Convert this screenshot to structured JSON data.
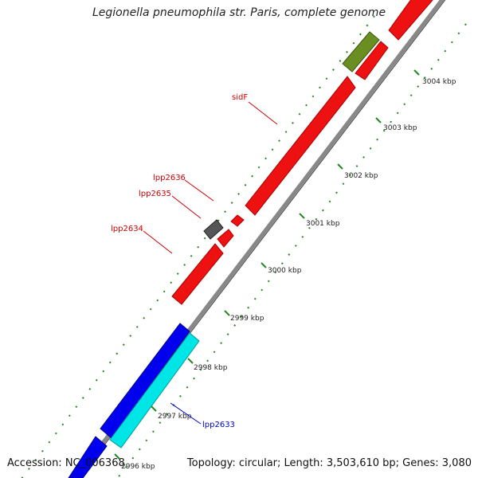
{
  "title": "Legionella pneumophila str. Paris, complete genome",
  "footer": {
    "accession": "Accession: NC_006368",
    "stats": "Topology: circular; Length: 3,503,610 bp; Genes: 3,080"
  },
  "ticks": [
    {
      "label": "2996 kbp"
    },
    {
      "label": "2997 kbp"
    },
    {
      "label": "2998 kbp"
    },
    {
      "label": "2999 kbp"
    },
    {
      "label": "3000 kbp"
    },
    {
      "label": "3001 kbp"
    },
    {
      "label": "3002 kbp"
    },
    {
      "label": "3003 kbp"
    },
    {
      "label": "3004 kbp"
    }
  ],
  "gene_labels": [
    {
      "name": "sidF",
      "color": "#cc0000"
    },
    {
      "name": "lpp2636",
      "color": "#cc0000"
    },
    {
      "name": "lpp2635",
      "color": "#cc0000"
    },
    {
      "name": "lpp2634",
      "color": "#cc0000"
    },
    {
      "name": "lpp2633",
      "color": "#0000cc"
    }
  ],
  "colors": {
    "forward_gene": "#ee1111",
    "reverse_gene": "#0000ee",
    "cyan_gene": "#00e5e5",
    "olive_gene": "#6b8e23",
    "grey_gene": "#555555",
    "backbone": "#888888",
    "tick": "#228822"
  }
}
